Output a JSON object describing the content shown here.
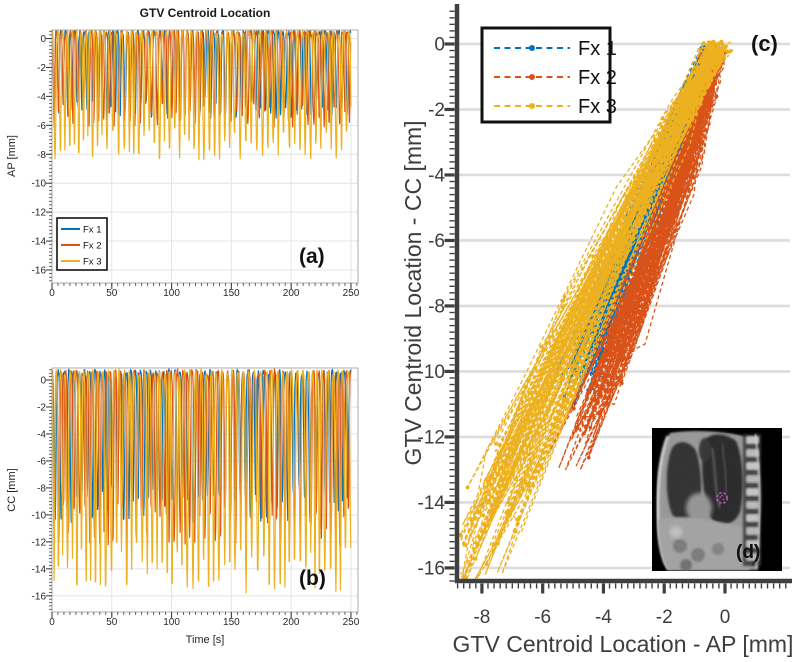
{
  "colors": {
    "fx1": "#0072BD",
    "fx2": "#D95319",
    "fx3": "#EDB120",
    "grid_light": "#e4e4e4",
    "grid_big": "#dcdcdc",
    "axis_light": "#adadad",
    "axis_dark": "#3f3f3f",
    "gtv_contour": "#c24fc2"
  },
  "inset": {
    "label": "(d)"
  },
  "chart_data": [
    {
      "id": "a",
      "type": "line",
      "panel_label": "(a)",
      "title": "GTV Centroid Location",
      "xlabel": "",
      "ylabel": "AP [mm]",
      "xlim": [
        0,
        255.9
      ],
      "ylim": [
        0.59,
        -16.9
      ],
      "xticks": [
        0,
        50,
        100,
        150,
        200,
        250
      ],
      "yticks": [
        0,
        -2,
        -4,
        -6,
        -8,
        -10,
        -12,
        -14,
        -16
      ],
      "grid": "both",
      "legend": {
        "visible": true,
        "entries": [
          "Fx 1",
          "Fx 2",
          "Fx 3"
        ],
        "position": "bottom-left",
        "line_style": "solid"
      },
      "signal": {
        "duration_s": 250,
        "sample_dt_s": 0.35,
        "breath_period_s": 4.2,
        "waveform_power": 2.2,
        "exhale_level_mm": 0.45,
        "noise_mm": 0.5
      },
      "series": [
        {
          "name": "Fx 1",
          "color": "#0072BD",
          "inhale_depth_mm": 5.8,
          "observed_range_mm": [
            0.6,
            -6.1
          ],
          "seed": 101
        },
        {
          "name": "Fx 2",
          "color": "#D95319",
          "inhale_depth_mm": 6.3,
          "observed_range_mm": [
            0.6,
            -7.0
          ],
          "seed": 202
        },
        {
          "name": "Fx 3",
          "color": "#EDB120",
          "inhale_depth_mm": 8.6,
          "observed_range_mm": [
            0.6,
            -8.7
          ],
          "seed": 303
        }
      ]
    },
    {
      "id": "b",
      "type": "line",
      "panel_label": "(b)",
      "title": "",
      "xlabel": "Time [s]",
      "ylabel": "CC [mm]",
      "xlim": [
        0,
        255.9
      ],
      "ylim": [
        0.89,
        -17.2
      ],
      "xticks": [
        0,
        50,
        100,
        150,
        200,
        250
      ],
      "yticks": [
        0,
        -2,
        -4,
        -6,
        -8,
        -10,
        -12,
        -14,
        -16
      ],
      "grid": "both",
      "legend": {
        "visible": false,
        "entries": [],
        "position": "",
        "line_style": "solid"
      },
      "signal": {
        "duration_s": 250,
        "sample_dt_s": 0.35,
        "breath_period_s": 4.2,
        "waveform_power": 2.2,
        "exhale_level_mm": 0.55,
        "noise_mm": 0.55
      },
      "series": [
        {
          "name": "Fx 1",
          "color": "#0072BD",
          "inhale_depth_mm": 10.8,
          "observed_range_mm": [
            1.0,
            -11.0
          ],
          "seed": 111
        },
        {
          "name": "Fx 2",
          "color": "#D95319",
          "inhale_depth_mm": 12.4,
          "observed_range_mm": [
            1.0,
            -12.5
          ],
          "seed": 222
        },
        {
          "name": "Fx 3",
          "color": "#EDB120",
          "inhale_depth_mm": 15.9,
          "observed_range_mm": [
            1.0,
            -16.4
          ],
          "seed": 333
        }
      ]
    },
    {
      "id": "c",
      "type": "scatter",
      "panel_label": "(c)",
      "title": "",
      "xlabel": "GTV Centroid Location - AP [mm]",
      "ylabel": "GTV Centroid Location - CC [mm]",
      "xlim": [
        -8.82,
        2.14
      ],
      "ylim": [
        1.16,
        -16.4
      ],
      "xticks": [
        -8,
        -6,
        -4,
        -2,
        0
      ],
      "yticks": [
        0,
        -2,
        -4,
        -6,
        -8,
        -10,
        -12,
        -14,
        -16
      ],
      "grid": "horizontal",
      "legend": {
        "visible": true,
        "entries": [
          "Fx 1",
          "Fx 2",
          "Fx 3"
        ],
        "position": "top-left",
        "line_style": "dashed-dot"
      },
      "signal": {
        "duration_s": 250,
        "sample_dt_s": 0.5,
        "breath_period_s": 4.2,
        "waveform_power": 2.6,
        "noise_ap_mm": 0.65,
        "noise_cc_mm": 0.55
      },
      "series": [
        {
          "name": "Fx 1",
          "color": "#0072BD",
          "ap_exhale_mm": -0.4,
          "ap_inhale_mm": -4.9,
          "cc_exhale_mm": -0.3,
          "cc_inhale_mm": -10.6,
          "ap_curve": 0.9,
          "path_spread_mm": 0.7,
          "seed": 11
        },
        {
          "name": "Fx 2",
          "color": "#D95319",
          "ap_exhale_mm": -0.4,
          "ap_inhale_mm": -5.0,
          "cc_exhale_mm": -0.4,
          "cc_inhale_mm": -12.5,
          "ap_curve": 1.3,
          "path_spread_mm": 0.9,
          "seed": 22
        },
        {
          "name": "Fx 3",
          "color": "#EDB120",
          "ap_exhale_mm": -0.3,
          "ap_inhale_mm": -8.6,
          "cc_exhale_mm": -0.2,
          "cc_inhale_mm": -16.1,
          "ap_curve": 0.95,
          "path_spread_mm": 1.5,
          "seed": 33
        }
      ]
    }
  ]
}
